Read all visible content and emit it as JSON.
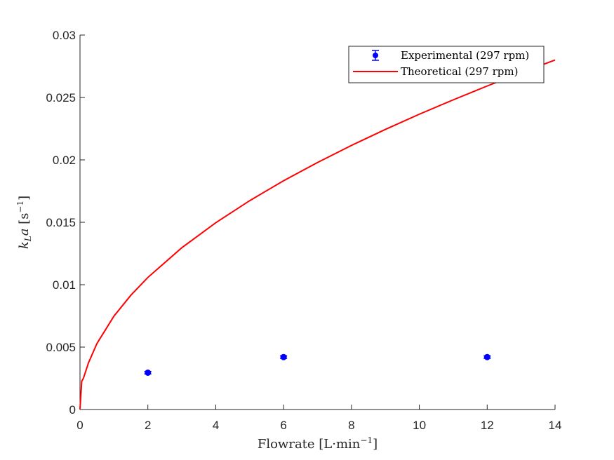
{
  "chart_data": {
    "type": "scatter",
    "title": "",
    "xlabel": "Flowrate [L·min",
    "xlabel_sup": "−1",
    "xlabel_tail": "]",
    "ylabel_k": "k",
    "ylabel_sub": "L",
    "ylabel_a": "a",
    "ylabel_unit": " [s",
    "ylabel_sup": "−1",
    "ylabel_tail": "]",
    "xlim": [
      0,
      14
    ],
    "ylim": [
      0,
      0.03
    ],
    "xticks": [
      0,
      2,
      4,
      6,
      8,
      10,
      12,
      14
    ],
    "xtick_labels": [
      "0",
      "2",
      "4",
      "6",
      "8",
      "10",
      "12",
      "14"
    ],
    "yticks": [
      0,
      0.005,
      0.01,
      0.015,
      0.02,
      0.025,
      0.03
    ],
    "ytick_labels": [
      "0",
      "0.005",
      "0.01",
      "0.015",
      "0.02",
      "0.025",
      "0.03"
    ],
    "grid": false,
    "legend_position": "top-right",
    "series": [
      {
        "name": "Experimental (297 rpm)",
        "kind": "errorbar",
        "color": "#0000ff",
        "x": [
          2,
          6,
          12
        ],
        "y": [
          0.00295,
          0.0042,
          0.0042
        ],
        "yerr": [
          0.0001,
          0.0001,
          0.0001
        ]
      },
      {
        "name": "Theoretical (297 rpm)",
        "kind": "line",
        "color": "#ff0000",
        "x": [
          0,
          0.05,
          0.1,
          0.25,
          0.5,
          1,
          1.5,
          2,
          3,
          4,
          5,
          6,
          7,
          8,
          9,
          10,
          11,
          12,
          13,
          14
        ],
        "y": [
          0,
          0.00225,
          0.0025,
          0.00374,
          0.00529,
          0.00748,
          0.00916,
          0.01058,
          0.01296,
          0.01496,
          0.01673,
          0.01833,
          0.01979,
          0.02116,
          0.02244,
          0.02366,
          0.02481,
          0.02592,
          0.02698,
          0.028
        ]
      }
    ]
  }
}
